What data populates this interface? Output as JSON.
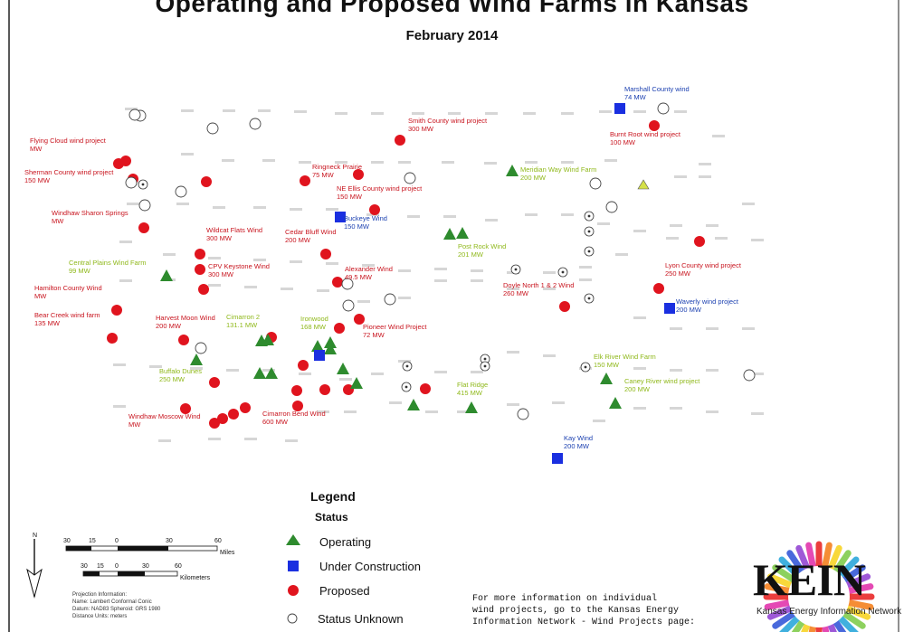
{
  "title": "Operating and Proposed Wind Farms in Kansas",
  "subtitle": "February 2014",
  "colors": {
    "operating": "#2e8b2e",
    "under_construction": "#1a2fe0",
    "proposed": "#e0141e",
    "proposed_label": "#c8141e",
    "operating_label": "#8fb81a",
    "construction_label": "#1a3fb0",
    "county_label": "#888888"
  },
  "legend": {
    "title": "Legend",
    "subtitle": "Status",
    "items": [
      {
        "status": "operating",
        "label": "Operating",
        "shape": "triangle"
      },
      {
        "status": "under_construction",
        "label": "Under Construction",
        "shape": "square"
      },
      {
        "status": "proposed",
        "label": "Proposed",
        "shape": "circle"
      },
      {
        "status": "unknown",
        "label": "Status Unknown",
        "shape": "open-circle"
      }
    ]
  },
  "scale": {
    "miles_ticks": [
      "30",
      "15",
      "0",
      "30",
      "60"
    ],
    "miles_unit": "Miles",
    "km_ticks": [
      "30",
      "15",
      "0",
      "30",
      "60"
    ],
    "km_unit": "Kilometers",
    "north": "N"
  },
  "projection_info": "Projection Information:\nName: Lambert Conformal Conic\nDatum: NAD83   Spheroid: GRS 1980\nDistance Units: meters",
  "info_text": "For more information on individual\nwind projects, go to the Kansas Energy\nInformation Network - Wind Projects page:",
  "logo": {
    "text": "KEIN",
    "subtitle": "Kansas Energy Information Network"
  },
  "labels": [
    {
      "lines": [
        "Marshall County wind",
        "74 MW"
      ],
      "status": "under_construction"
    },
    {
      "lines": [
        "Smith County wind project",
        "300 MW"
      ],
      "status": "proposed"
    },
    {
      "lines": [
        "Burnt Root wind project",
        "100 MW"
      ],
      "status": "proposed"
    },
    {
      "lines": [
        "Flying Cloud wind project",
        "MW"
      ],
      "status": "proposed"
    },
    {
      "lines": [
        "Ringneck Prairie",
        "75 MW"
      ],
      "status": "proposed"
    },
    {
      "lines": [
        "Meridian Way Wind Farm",
        "200 MW"
      ],
      "status": "operating"
    },
    {
      "lines": [
        "Sherman County wind project",
        "150 MW"
      ],
      "status": "proposed"
    },
    {
      "lines": [
        "NE Ellis County wind project",
        "150 MW"
      ],
      "status": "proposed"
    },
    {
      "lines": [
        "Buckeye Wind",
        "150 MW"
      ],
      "status": "under_construction"
    },
    {
      "lines": [
        "Wildcat Flats Wind",
        "300 MW"
      ],
      "status": "proposed"
    },
    {
      "lines": [
        "Cedar Bluff Wind",
        "200 MW"
      ],
      "status": "proposed"
    },
    {
      "lines": [
        "Post Rock Wind",
        "201 MW"
      ],
      "status": "operating"
    },
    {
      "lines": [
        "Windhaw Sharon Springs",
        "MW"
      ],
      "status": "proposed"
    },
    {
      "lines": [
        "Central Plains Wind Farm",
        "99 MW"
      ],
      "status": "operating"
    },
    {
      "lines": [
        "CPV Keystone Wind",
        "300 MW"
      ],
      "status": "proposed"
    },
    {
      "lines": [
        "Alexander Wind",
        "49.5 MW"
      ],
      "status": "proposed"
    },
    {
      "lines": [
        "Lyon County wind project",
        "250 MW"
      ],
      "status": "proposed"
    },
    {
      "lines": [
        "Hamilton County Wind",
        "MW"
      ],
      "status": "proposed"
    },
    {
      "lines": [
        "Doyle North 1 & 2 Wind",
        "260 MW"
      ],
      "status": "proposed"
    },
    {
      "lines": [
        "Waverly wind project",
        "200 MW"
      ],
      "status": "under_construction"
    },
    {
      "lines": [
        "Bear Creek wind farm",
        "135 MW"
      ],
      "status": "proposed"
    },
    {
      "lines": [
        "Harvest Moon Wind",
        "200 MW"
      ],
      "status": "proposed"
    },
    {
      "lines": [
        "Cimarron 2",
        "131.1 MW"
      ],
      "status": "operating"
    },
    {
      "lines": [
        "Ironwood",
        "168 MW"
      ],
      "status": "operating"
    },
    {
      "lines": [
        "Pioneer Wind Project",
        "72 MW"
      ],
      "status": "proposed"
    },
    {
      "lines": [
        "Buffalo Dunes",
        "250 MW"
      ],
      "status": "operating"
    },
    {
      "lines": [
        "Elk River Wind Farm",
        "150 MW"
      ],
      "status": "operating"
    },
    {
      "lines": [
        "Caney River wind project",
        "200 MW"
      ],
      "status": "operating"
    },
    {
      "lines": [
        "Flat Ridge",
        "415 MW"
      ],
      "status": "operating"
    },
    {
      "lines": [
        "Windhaw Moscow Wind",
        "MW"
      ],
      "status": "proposed"
    },
    {
      "lines": [
        "Cimarron Bend Wind",
        "600 MW"
      ],
      "status": "proposed"
    },
    {
      "lines": [
        "Kay Wind",
        "200 MW"
      ],
      "status": "under_construction"
    }
  ]
}
